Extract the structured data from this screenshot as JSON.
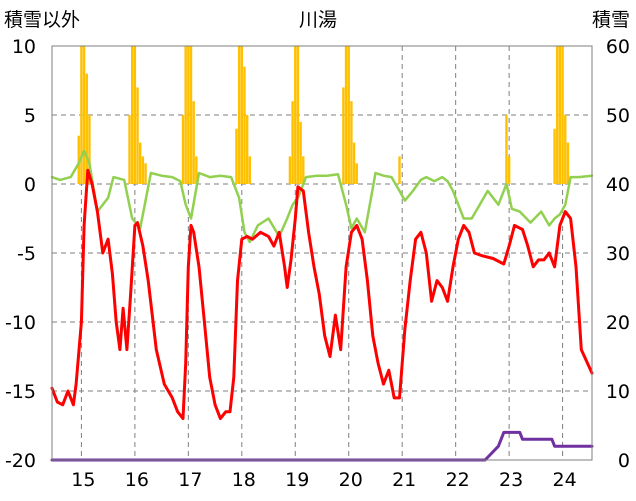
{
  "chart_data": {
    "type": "line",
    "title": "川湯",
    "ylabel_left": "積雪以外",
    "ylabel_right": "積雪",
    "x_range": [
      14.45,
      24.55
    ],
    "x_ticks": [
      15,
      16,
      17,
      18,
      19,
      20,
      21,
      22,
      23,
      24
    ],
    "y_left_range": [
      -20,
      10
    ],
    "y_left_ticks": [
      -20,
      -15,
      -10,
      -5,
      0,
      5,
      10
    ],
    "y_right_range": [
      0,
      60
    ],
    "y_right_ticks": [
      0,
      10,
      20,
      30,
      40,
      50,
      60
    ],
    "grid": true,
    "colors": {
      "precipitation": "#FFC000",
      "temperature": "#FF0000",
      "wind": "#92D050",
      "snow_depth": "#7030A0",
      "grid": "#7f7f7f"
    },
    "series": [
      {
        "axis": "left",
        "type": "bar",
        "color": "#FFC000",
        "x": [
          14.95,
          15.0,
          15.05,
          15.1,
          15.15,
          15.9,
          15.95,
          16.0,
          16.05,
          16.1,
          16.15,
          16.2,
          16.9,
          16.95,
          17.0,
          17.05,
          17.1,
          17.15,
          17.9,
          17.95,
          18.0,
          18.05,
          18.1,
          18.15,
          18.9,
          18.95,
          19.0,
          19.05,
          19.1,
          19.15,
          19.9,
          19.95,
          20.0,
          20.05,
          20.1,
          20.15,
          20.95,
          22.95,
          23.0,
          23.85,
          23.9,
          23.95,
          24.0,
          24.05,
          24.1
        ],
        "values": [
          3.5,
          10.0,
          10.0,
          8.0,
          5.0,
          5.0,
          10.0,
          10.0,
          7.0,
          3.0,
          2.0,
          1.5,
          5.0,
          10.0,
          10.0,
          10.0,
          6.0,
          2.0,
          4.0,
          10.0,
          10.0,
          8.5,
          5.0,
          2.0,
          2.0,
          6.0,
          10.0,
          10.0,
          4.5,
          2.0,
          7.0,
          10.0,
          10.0,
          6.0,
          3.0,
          1.5,
          2.0,
          5.0,
          2.0,
          4.0,
          10.0,
          10.0,
          10.0,
          5.0,
          3.0
        ]
      },
      {
        "axis": "left",
        "type": "line",
        "color": "#92D050",
        "x": [
          14.45,
          14.6,
          14.8,
          14.95,
          15.05,
          15.15,
          15.3,
          15.5,
          15.6,
          15.8,
          15.95,
          16.1,
          16.3,
          16.5,
          16.7,
          16.85,
          16.95,
          17.05,
          17.2,
          17.4,
          17.6,
          17.8,
          17.95,
          18.05,
          18.15,
          18.3,
          18.5,
          18.7,
          18.85,
          18.95,
          19.05,
          19.2,
          19.4,
          19.6,
          19.8,
          19.95,
          20.05,
          20.15,
          20.3,
          20.5,
          20.65,
          20.8,
          20.95,
          21.05,
          21.2,
          21.35,
          21.45,
          21.6,
          21.75,
          21.85,
          21.95,
          22.05,
          22.15,
          22.3,
          22.45,
          22.6,
          22.8,
          22.95,
          23.05,
          23.2,
          23.4,
          23.6,
          23.75,
          23.85,
          23.95,
          24.05,
          24.15,
          24.3,
          24.55
        ],
        "values": [
          0.5,
          0.3,
          0.5,
          1.5,
          2.4,
          1.5,
          -2.0,
          -1.0,
          0.5,
          0.3,
          -2.5,
          -3.2,
          0.8,
          0.6,
          0.5,
          0.2,
          -1.5,
          -2.5,
          0.8,
          0.5,
          0.6,
          0.5,
          -1.0,
          -3.5,
          -4.2,
          -3.0,
          -2.5,
          -3.8,
          -2.5,
          -1.5,
          -1.0,
          0.5,
          0.6,
          0.6,
          0.7,
          -1.5,
          -3.2,
          -2.5,
          -3.5,
          0.8,
          0.6,
          0.5,
          -0.5,
          -1.2,
          -0.5,
          0.3,
          0.5,
          0.2,
          0.5,
          0.2,
          -0.5,
          -1.5,
          -2.5,
          -2.5,
          -1.5,
          -0.5,
          -1.5,
          0.0,
          -1.8,
          -2.0,
          -2.8,
          -2.0,
          -3.0,
          -2.5,
          -2.2,
          -1.5,
          0.5,
          0.5,
          0.6
        ]
      },
      {
        "axis": "left",
        "type": "line",
        "color": "#FF0000",
        "x": [
          14.45,
          14.55,
          14.65,
          14.75,
          14.8,
          14.85,
          14.9,
          15.0,
          15.05,
          15.12,
          15.2,
          15.3,
          15.4,
          15.5,
          15.58,
          15.65,
          15.72,
          15.78,
          15.85,
          15.92,
          16.0,
          16.05,
          16.15,
          16.25,
          16.4,
          16.55,
          16.7,
          16.8,
          16.9,
          16.95,
          17.0,
          17.05,
          17.1,
          17.2,
          17.3,
          17.4,
          17.5,
          17.6,
          17.7,
          17.78,
          17.85,
          17.92,
          18.0,
          18.1,
          18.2,
          18.35,
          18.5,
          18.6,
          18.7,
          18.8,
          18.85,
          18.92,
          19.0,
          19.05,
          19.15,
          19.25,
          19.35,
          19.45,
          19.55,
          19.65,
          19.75,
          19.85,
          19.95,
          20.05,
          20.15,
          20.25,
          20.35,
          20.45,
          20.55,
          20.65,
          20.75,
          20.85,
          20.95,
          21.05,
          21.15,
          21.25,
          21.35,
          21.45,
          21.55,
          21.65,
          21.75,
          21.85,
          21.95,
          22.05,
          22.15,
          22.25,
          22.35,
          22.5,
          22.7,
          22.9,
          23.0,
          23.1,
          23.25,
          23.35,
          23.45,
          23.55,
          23.65,
          23.75,
          23.85,
          23.95,
          24.05,
          24.15,
          24.25,
          24.35,
          24.55
        ],
        "values": [
          -14.8,
          -15.8,
          -16.0,
          -15.0,
          -15.5,
          -16.0,
          -14.5,
          -10.0,
          -3.0,
          1.0,
          0.0,
          -2.0,
          -5.0,
          -4.0,
          -6.5,
          -10.0,
          -12.0,
          -9.0,
          -12.0,
          -8.0,
          -3.0,
          -2.8,
          -4.5,
          -7.0,
          -12.0,
          -14.5,
          -15.5,
          -16.5,
          -17.0,
          -13.0,
          -6.0,
          -3.0,
          -3.5,
          -6.0,
          -10.0,
          -14.0,
          -16.0,
          -17.0,
          -16.5,
          -16.5,
          -14.0,
          -7.0,
          -4.0,
          -3.8,
          -4.0,
          -3.5,
          -3.8,
          -4.5,
          -3.5,
          -6.0,
          -7.5,
          -5.5,
          -2.5,
          -0.2,
          -0.5,
          -3.5,
          -6.0,
          -8.0,
          -11.0,
          -12.5,
          -9.5,
          -12.0,
          -6.0,
          -3.5,
          -3.0,
          -4.0,
          -7.0,
          -11.0,
          -13.0,
          -14.5,
          -13.5,
          -15.5,
          -15.5,
          -10.5,
          -7.0,
          -4.0,
          -3.5,
          -5.0,
          -8.5,
          -7.0,
          -7.5,
          -8.5,
          -6.0,
          -4.0,
          -3.0,
          -3.5,
          -5.0,
          -5.2,
          -5.4,
          -5.8,
          -4.5,
          -3.0,
          -3.3,
          -4.5,
          -6.0,
          -5.5,
          -5.5,
          -5.0,
          -6.0,
          -3.0,
          -2.0,
          -2.5,
          -6.0,
          -12.0,
          -13.7
        ]
      },
      {
        "axis": "right",
        "type": "line",
        "color": "#7030A0",
        "x": [
          14.45,
          22.55,
          22.8,
          22.9,
          23.2,
          23.25,
          23.8,
          23.85,
          24.55
        ],
        "values": [
          0,
          0,
          2,
          4,
          4,
          3,
          3,
          2,
          2
        ]
      }
    ]
  }
}
